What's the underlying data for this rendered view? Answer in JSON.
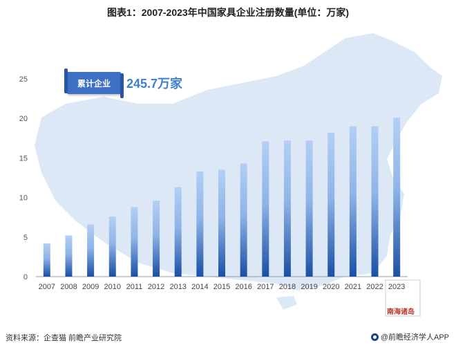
{
  "title": "图表1：2007-2023年中国家具企业注册数量(单位：万家)",
  "source": "资料来源：企查猫 前瞻产业研究院",
  "brand": "@前瞻经济学人APP",
  "map_label": "南海诸岛",
  "callout": {
    "label": "累计企业",
    "value": "245.7万家"
  },
  "colors": {
    "bar_top": "#a9c8f2",
    "bar_bottom": "#1a4fa3",
    "map": "#dbe7f6",
    "axis": "#999999"
  },
  "chart_data": {
    "type": "bar",
    "title": "图表1：2007-2023年中国家具企业注册数量(单位：万家)",
    "xlabel": "",
    "ylabel": "",
    "categories": [
      "2007",
      "2008",
      "2009",
      "2010",
      "2011",
      "2012",
      "2013",
      "2014",
      "2015",
      "2016",
      "2017",
      "2018",
      "2019",
      "2020",
      "2021",
      "2022",
      "2023"
    ],
    "values": [
      4.2,
      5.2,
      6.6,
      7.6,
      8.8,
      9.6,
      11.3,
      13.3,
      13.5,
      14.3,
      17.1,
      17.2,
      17.2,
      18.2,
      19.0,
      19.0,
      20.1
    ],
    "ylim": [
      0,
      25
    ],
    "yticks": [
      0,
      5,
      10,
      15,
      20,
      25
    ],
    "grid": false,
    "legend": "none"
  }
}
